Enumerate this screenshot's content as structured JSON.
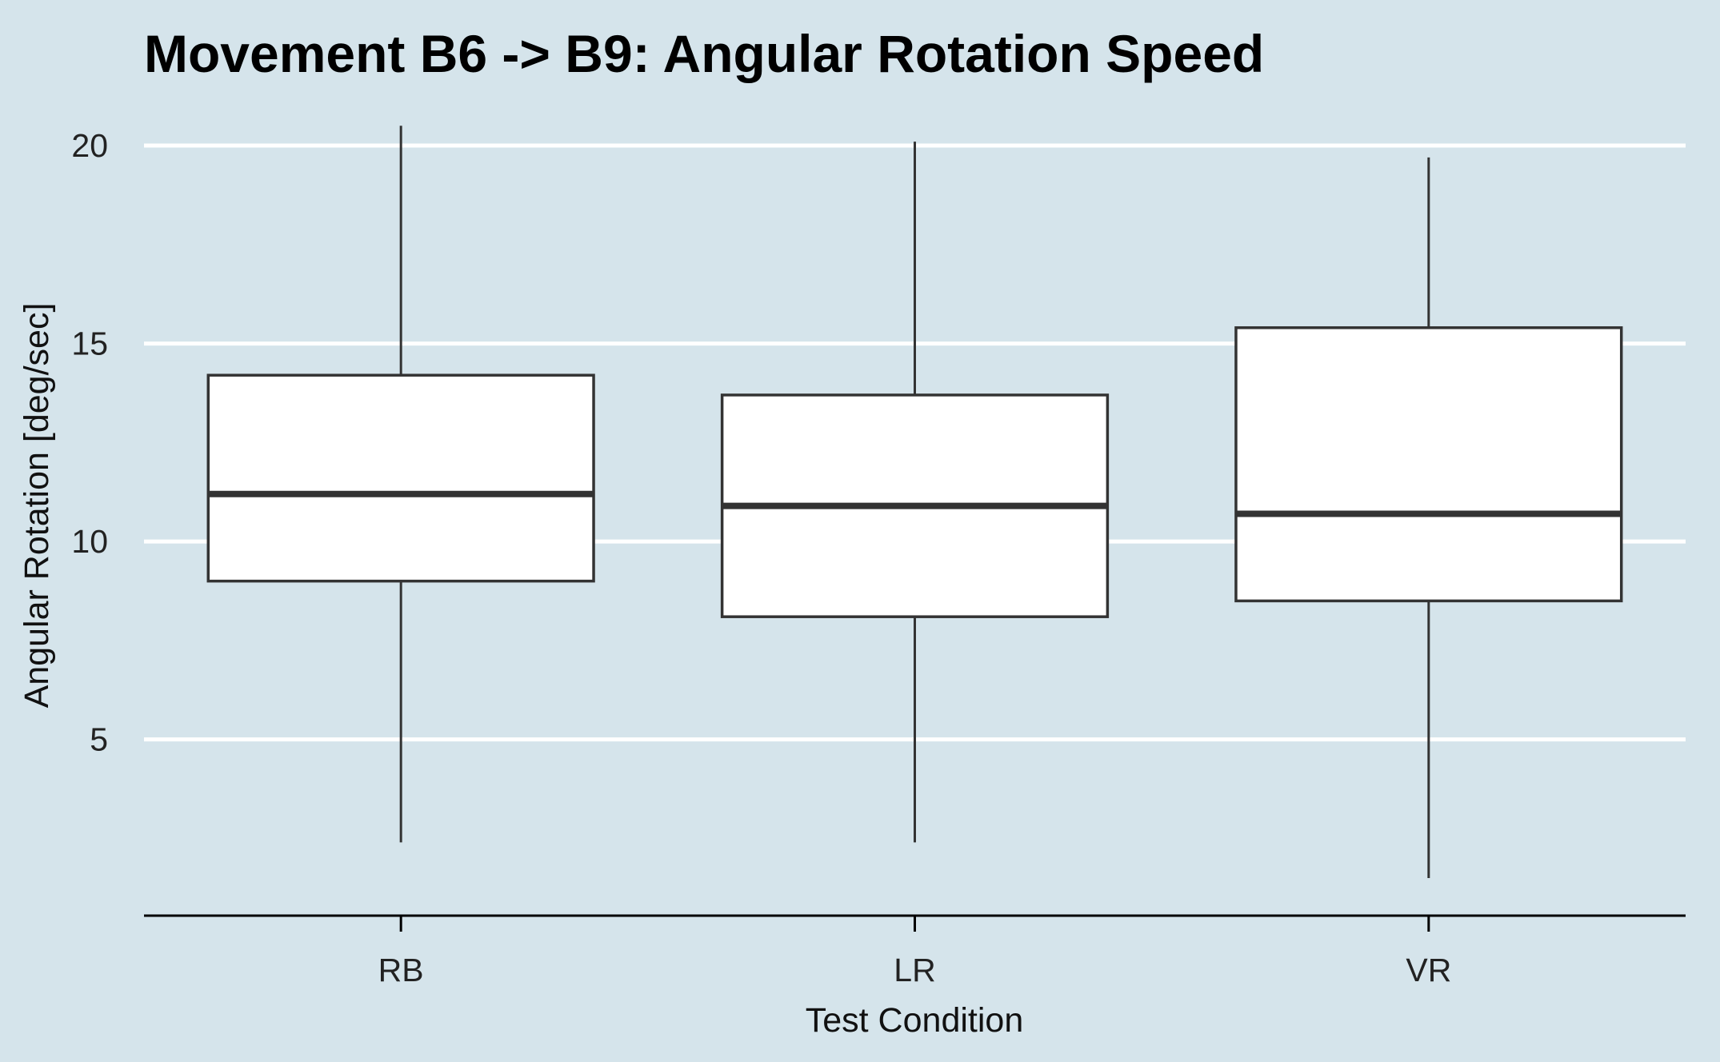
{
  "chart_data": {
    "type": "boxplot",
    "title": "Movement B6 -> B9: Angular Rotation Speed",
    "xlabel": "Test Condition",
    "ylabel": "Angular Rotation [deg/sec]",
    "categories": [
      "RB",
      "LR",
      "VR"
    ],
    "boxes": [
      {
        "category": "RB",
        "min": 2.4,
        "q1": 9.0,
        "median": 11.2,
        "q3": 14.2,
        "max": 20.5
      },
      {
        "category": "LR",
        "min": 2.4,
        "q1": 8.1,
        "median": 10.9,
        "q3": 13.7,
        "max": 20.1
      },
      {
        "category": "VR",
        "min": 1.5,
        "q1": 8.5,
        "median": 10.7,
        "q3": 15.4,
        "max": 19.7
      }
    ],
    "yticks": [
      5,
      10,
      15,
      20
    ],
    "ylim": [
      0.55,
      20.95
    ],
    "grid": "horizontal",
    "colors": {
      "background": "#d5e4eb",
      "grid": "#ffffff",
      "box_fill": "#ffffff",
      "box_stroke": "#333333"
    }
  }
}
